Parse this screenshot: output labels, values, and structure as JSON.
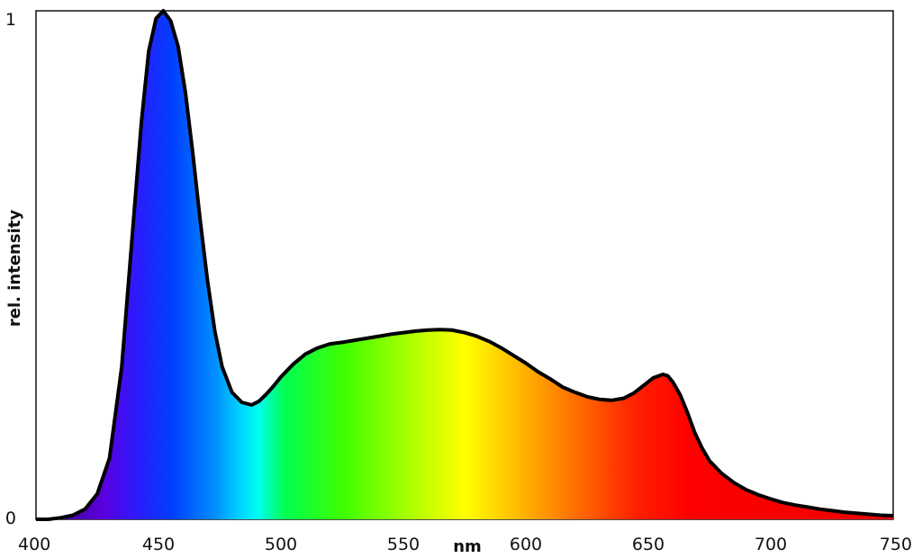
{
  "chart_data": {
    "type": "area",
    "title": "",
    "xlabel": "nm",
    "ylabel": "rel. intensity",
    "xlim": [
      400,
      750
    ],
    "ylim": [
      0,
      1
    ],
    "grid": false,
    "x_ticks": [
      "400",
      "450",
      "500",
      "550",
      "600",
      "650",
      "700",
      "750"
    ],
    "y_ticks": [
      "0",
      "1"
    ],
    "fill": "visible-spectrum gradient",
    "line_color": "#000000",
    "series": [
      {
        "x": [
          400,
          405,
          410,
          415,
          420,
          425,
          430,
          435,
          440,
          443,
          446,
          449,
          452,
          455,
          458,
          461,
          464,
          467,
          470,
          473,
          476,
          480,
          484,
          488,
          491,
          494,
          497,
          500,
          505,
          510,
          515,
          520,
          525,
          530,
          535,
          540,
          545,
          550,
          555,
          560,
          565,
          570,
          575,
          580,
          585,
          590,
          595,
          600,
          605,
          610,
          615,
          620,
          625,
          630,
          635,
          640,
          644,
          648,
          652,
          656,
          658,
          660,
          663,
          666,
          669,
          672,
          675,
          680,
          685,
          690,
          695,
          700,
          705,
          710,
          715,
          720,
          725,
          730,
          735,
          740,
          745,
          750
        ],
        "values": [
          0.0,
          0.0,
          0.003,
          0.008,
          0.02,
          0.05,
          0.12,
          0.3,
          0.6,
          0.78,
          0.92,
          0.985,
          1.0,
          0.98,
          0.93,
          0.84,
          0.72,
          0.59,
          0.47,
          0.37,
          0.3,
          0.25,
          0.23,
          0.225,
          0.232,
          0.246,
          0.262,
          0.28,
          0.305,
          0.325,
          0.337,
          0.345,
          0.348,
          0.352,
          0.356,
          0.36,
          0.364,
          0.367,
          0.37,
          0.372,
          0.373,
          0.372,
          0.367,
          0.36,
          0.35,
          0.337,
          0.322,
          0.307,
          0.29,
          0.276,
          0.26,
          0.25,
          0.241,
          0.236,
          0.234,
          0.238,
          0.248,
          0.263,
          0.278,
          0.285,
          0.282,
          0.27,
          0.245,
          0.21,
          0.17,
          0.14,
          0.115,
          0.09,
          0.072,
          0.058,
          0.048,
          0.04,
          0.033,
          0.028,
          0.024,
          0.02,
          0.017,
          0.014,
          0.012,
          0.01,
          0.008,
          0.007
        ]
      }
    ]
  }
}
